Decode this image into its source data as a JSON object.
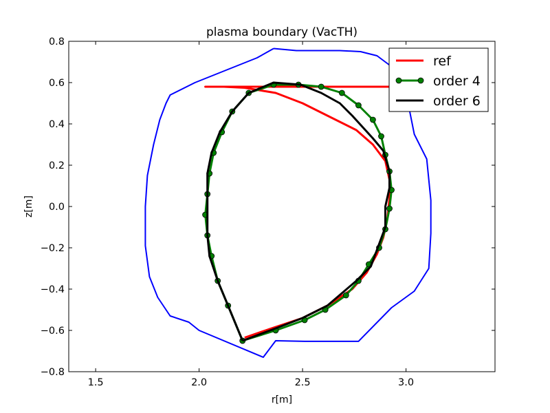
{
  "chart_data": {
    "type": "line",
    "title": "plasma boundary (VacTH)",
    "xlabel": "r[m]",
    "ylabel": "z[m]",
    "xlim": [
      1.37,
      3.43
    ],
    "ylim": [
      -0.8,
      0.8
    ],
    "xticks": [
      1.5,
      2.0,
      2.5,
      3.0
    ],
    "xtick_labels": [
      "1.5",
      "2.0",
      "2.5",
      "3.0"
    ],
    "yticks": [
      -0.8,
      -0.6,
      -0.4,
      -0.2,
      0.0,
      0.2,
      0.4,
      0.6,
      0.8
    ],
    "ytick_labels": [
      "−0.8",
      "−0.6",
      "−0.4",
      "−0.2",
      "0.0",
      "0.2",
      "0.4",
      "0.6",
      "0.8"
    ],
    "grid": false,
    "legend_position": "top-right",
    "series": [
      {
        "color": "#0000ff",
        "linewidth": 2,
        "marker": null,
        "in_legend": false,
        "x": [
          2.36,
          2.47,
          2.68,
          2.78,
          2.86,
          2.94,
          3.0,
          3.04,
          3.1,
          3.12,
          3.12,
          3.11,
          3.04,
          2.93,
          2.77,
          2.51,
          2.37,
          2.31,
          2.0,
          1.95,
          1.86,
          1.8,
          1.76,
          1.74,
          1.74,
          1.75,
          1.78,
          1.81,
          1.84,
          1.86,
          1.98,
          2.13,
          2.28,
          2.36
        ],
        "y": [
          0.765,
          0.755,
          0.755,
          0.75,
          0.73,
          0.67,
          0.55,
          0.35,
          0.23,
          0.03,
          -0.13,
          -0.3,
          -0.41,
          -0.49,
          -0.653,
          -0.653,
          -0.65,
          -0.73,
          -0.6,
          -0.56,
          -0.53,
          -0.44,
          -0.34,
          -0.19,
          0.0,
          0.15,
          0.3,
          0.42,
          0.5,
          0.54,
          0.6,
          0.66,
          0.72,
          0.765
        ]
      },
      {
        "name": "ref",
        "color": "#ff0000",
        "linewidth": 3,
        "marker": null,
        "in_legend": true,
        "x": [
          2.22,
          2.35,
          2.5,
          2.62,
          2.74,
          2.81,
          2.86,
          2.89,
          2.91,
          2.92,
          2.92,
          2.9,
          2.84,
          2.76,
          2.62,
          2.5,
          2.37,
          2.22,
          2.12,
          2.09,
          2.05,
          2.03,
          2.03,
          2.04,
          2.06,
          2.1,
          2.16,
          2.23,
          2.31,
          2.36,
          2.45,
          2.58,
          2.7,
          2.81,
          2.87,
          2.91,
          2.92,
          2.9,
          2.84,
          2.76,
          2.62,
          2.48,
          2.35,
          2.22
        ],
        "y": [
          -0.635,
          -0.59,
          -0.54,
          -0.48,
          -0.4,
          -0.32,
          -0.23,
          -0.15,
          -0.06,
          0.04,
          0.13,
          0.22,
          0.3,
          0.37,
          0.44,
          0.5,
          0.55,
          0.575,
          0.58,
          0.58,
          0.58,
          0.58,
          0.58,
          0.58,
          0.58,
          0.58,
          0.58,
          0.58,
          0.58,
          0.58,
          0.58,
          0.58,
          0.58,
          0.58,
          0.58,
          0.58,
          0.58,
          0.58,
          0.58,
          0.58,
          0.58,
          0.58,
          0.58,
          0.58
        ]
      },
      {
        "name": "order 4",
        "color": "#008000",
        "linewidth": 3,
        "marker": "circle",
        "marker_color": "#008000",
        "in_legend": true,
        "x": [
          2.21,
          2.37,
          2.51,
          2.61,
          2.71,
          2.77,
          2.82,
          2.87,
          2.9,
          2.92,
          2.93,
          2.92,
          2.9,
          2.88,
          2.84,
          2.77,
          2.69,
          2.59,
          2.48,
          2.36,
          2.24,
          2.16,
          2.11,
          2.07,
          2.05,
          2.04,
          2.03,
          2.04,
          2.06,
          2.09,
          2.14,
          2.21
        ],
        "y": [
          -0.65,
          -0.6,
          -0.55,
          -0.5,
          -0.43,
          -0.36,
          -0.28,
          -0.2,
          -0.11,
          -0.01,
          0.08,
          0.17,
          0.25,
          0.34,
          0.42,
          0.49,
          0.55,
          0.58,
          0.59,
          0.59,
          0.55,
          0.46,
          0.36,
          0.26,
          0.16,
          0.06,
          -0.04,
          -0.14,
          -0.24,
          -0.36,
          -0.48,
          -0.65
        ]
      },
      {
        "name": "order 6",
        "color": "#000000",
        "linewidth": 3,
        "marker": null,
        "in_legend": true,
        "x": [
          2.21,
          2.37,
          2.5,
          2.62,
          2.76,
          2.83,
          2.9,
          2.9,
          2.92,
          2.92,
          2.89,
          2.84,
          2.74,
          2.68,
          2.59,
          2.49,
          2.36,
          2.24,
          2.16,
          2.1,
          2.06,
          2.04,
          2.04,
          2.04,
          2.05,
          2.09,
          2.14,
          2.21
        ],
        "y": [
          -0.65,
          -0.59,
          -0.54,
          -0.48,
          -0.36,
          -0.29,
          -0.1,
          0.0,
          0.09,
          0.17,
          0.27,
          0.33,
          0.44,
          0.5,
          0.55,
          0.59,
          0.6,
          0.55,
          0.46,
          0.36,
          0.26,
          0.16,
          0.05,
          -0.14,
          -0.24,
          -0.36,
          -0.48,
          -0.65
        ]
      }
    ]
  }
}
